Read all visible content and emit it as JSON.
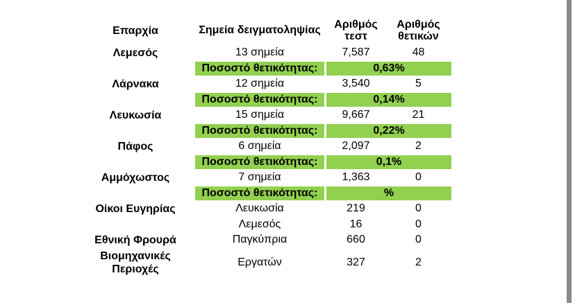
{
  "colors": {
    "page_bg": "#ffffff",
    "text": "#000000",
    "positivity_row_bg": "#92d050",
    "scrollbar_thumb": "#8a8a8a"
  },
  "table": {
    "headers": {
      "province": "Επαρχία",
      "sampling_points": "Σημεία δειγματοληψίας",
      "tests_line1": "Αριθμός",
      "tests_line2": "τεστ",
      "positives_line1": "Αριθμός",
      "positives_line2": "θετικών"
    },
    "positivity_label": "Ποσοστό θετικότητας:",
    "rows": [
      {
        "province": "Λεμεσός",
        "points": "13 σημεία",
        "tests": "7,587",
        "positives": "48",
        "positivity": "0,63%"
      },
      {
        "province": "Λάρνακα",
        "points": "12 σημεία",
        "tests": "3,540",
        "positives": "5",
        "positivity": "0,14%"
      },
      {
        "province": "Λευκωσία",
        "points": "15 σημεία",
        "tests": "9,667",
        "positives": "21",
        "positivity": "0,22%"
      },
      {
        "province": "Πάφος",
        "points": "6 σημεία",
        "tests": "2,097",
        "positives": "2",
        "positivity": "0,1%"
      },
      {
        "province": "Αμμόχωστος",
        "points": "7 σημεία",
        "tests": "1,363",
        "positives": "0",
        "positivity": "%"
      },
      {
        "province": "Οίκοι Ευγηρίας",
        "points": "Λευκωσία",
        "tests": "219",
        "positives": "0"
      },
      {
        "province": "",
        "points": "Λεμεσός",
        "tests": "16",
        "positives": "0"
      },
      {
        "province": "Εθνική Φρουρά",
        "points": "Παγκύπρια",
        "tests": "660",
        "positives": "0"
      },
      {
        "province": "Βιομηχανικές Περιοχές",
        "points": "Εργατών",
        "tests": "327",
        "positives": "2"
      }
    ]
  }
}
